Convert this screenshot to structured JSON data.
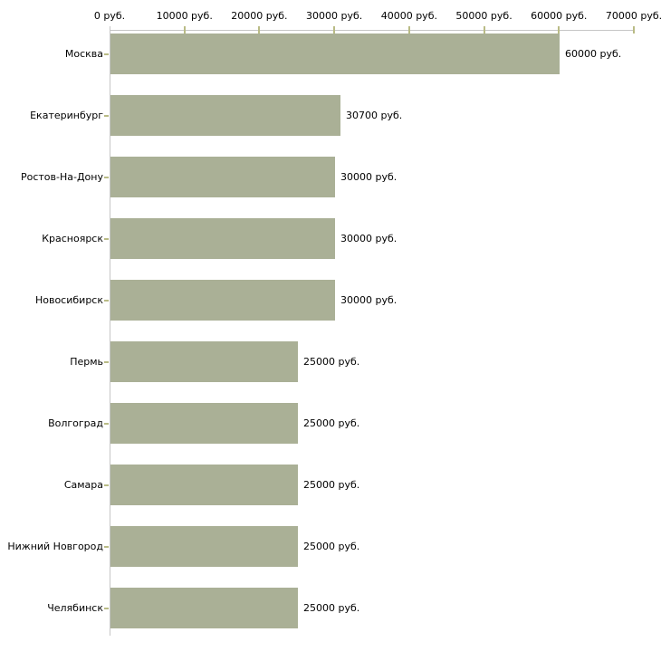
{
  "chart_data": {
    "type": "bar",
    "orientation": "horizontal",
    "title": "",
    "xlabel": "",
    "ylabel": "",
    "categories": [
      "Москва",
      "Екатеринбург",
      "Ростов-На-Дону",
      "Красноярск",
      "Новосибирск",
      "Пермь",
      "Волгоград",
      "Самара",
      "Нижний Новгород",
      "Челябинск"
    ],
    "values": [
      60000,
      30700,
      30000,
      30000,
      30000,
      25000,
      25000,
      25000,
      25000,
      25000
    ],
    "value_labels": [
      "60000 руб.",
      "30700 руб.",
      "30000 руб.",
      "30000 руб.",
      "30000 руб.",
      "25000 руб.",
      "25000 руб.",
      "25000 руб.",
      "25000 руб.",
      "25000 руб."
    ],
    "x_axis": {
      "position": "top",
      "range": [
        0,
        70000
      ],
      "tick_values": [
        0,
        10000,
        20000,
        30000,
        40000,
        50000,
        60000,
        70000
      ],
      "tick_labels": [
        "0 руб.",
        "10000 руб.",
        "20000 руб.",
        "30000 руб.",
        "40000 руб.",
        "50000 руб.",
        "60000 руб.",
        "70000 руб."
      ]
    },
    "grid": false,
    "legend": false,
    "colors": {
      "bar_fill": "#aab096",
      "axis_line": "#c6c6c6",
      "tick_mark": "#b9bb85",
      "text": "#000000",
      "background": "#ffffff"
    }
  }
}
